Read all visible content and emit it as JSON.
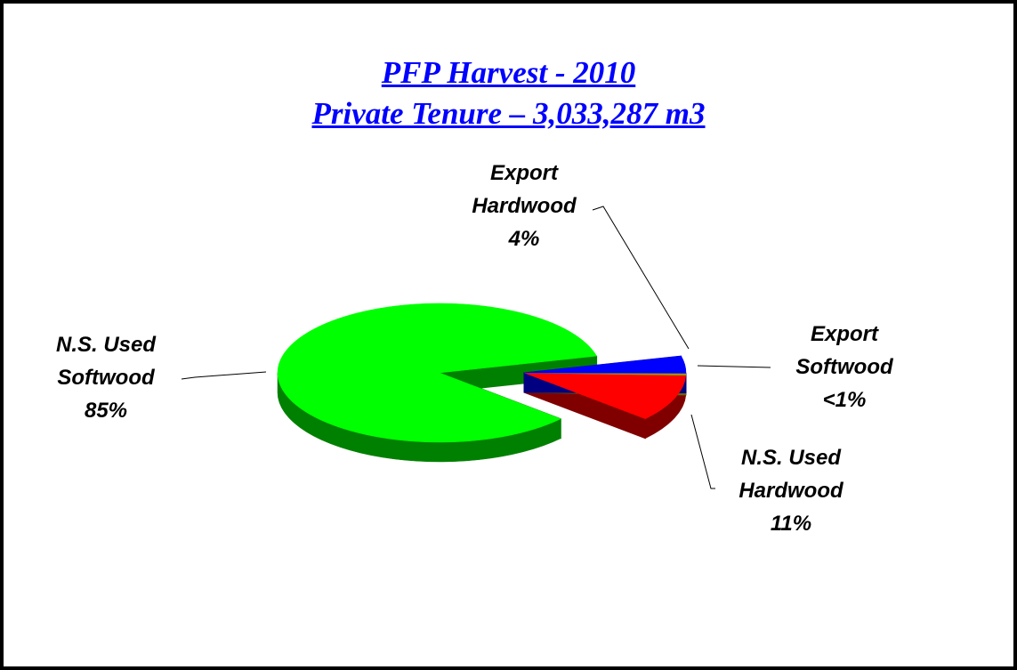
{
  "chart_data": {
    "type": "pie",
    "title": "PFP Harvest  - 2010",
    "subtitle": "Private Tenure – 3,033,287 m3",
    "categories": [
      "N.S. Used Softwood",
      "N.S. Used Hardwood",
      "Export Softwood",
      "Export Hardwood"
    ],
    "values": [
      85,
      11,
      0.5,
      4
    ],
    "value_labels": [
      "85%",
      "11%",
      "<1%",
      "4%"
    ],
    "colors": [
      "#00ff00",
      "#ff0000",
      "#999900",
      "#0000ff"
    ],
    "side_colors": [
      "#008000",
      "#800000",
      "#666600",
      "#000080"
    ]
  }
}
